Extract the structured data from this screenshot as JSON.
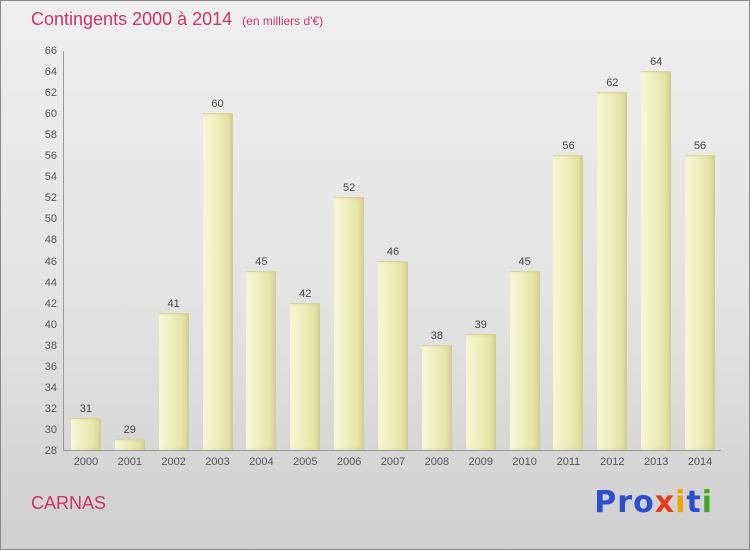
{
  "header": {
    "title": "Contingents 2000 à 2014",
    "subtitle": "(en milliers d'€)"
  },
  "footer": {
    "location": "CARNAS",
    "logo_name": "Proxiti",
    "logo_letters": [
      {
        "char": "P",
        "color": "#2c4fce"
      },
      {
        "char": "r",
        "color": "#2c4fce"
      },
      {
        "char": "o",
        "color": "#2c4fce"
      },
      {
        "char": "x",
        "color": "#e8391d"
      },
      {
        "char": "i",
        "color": "#f0a400"
      },
      {
        "char": "t",
        "color": "#2c4fce"
      },
      {
        "char": "i",
        "color": "#43a62a"
      }
    ]
  },
  "colors": {
    "title": "#cc3366",
    "bar_fill": "#eeeebd",
    "axis": "#9a9a9a",
    "tick_text": "#555555"
  },
  "chart_data": {
    "type": "bar",
    "title": "Contingents 2000 à 2014",
    "subtitle": "(en milliers d'€)",
    "categories": [
      "2000",
      "2001",
      "2002",
      "2003",
      "2004",
      "2005",
      "2006",
      "2007",
      "2008",
      "2009",
      "2010",
      "2011",
      "2012",
      "2013",
      "2014"
    ],
    "values": [
      31,
      29,
      41,
      60,
      45,
      42,
      52,
      46,
      38,
      39,
      45,
      56,
      62,
      64,
      56
    ],
    "xlabel": "",
    "ylabel": "",
    "ylim": [
      28,
      66
    ],
    "ytick_step": 2,
    "grid": false,
    "legend": false,
    "value_labels": true
  }
}
